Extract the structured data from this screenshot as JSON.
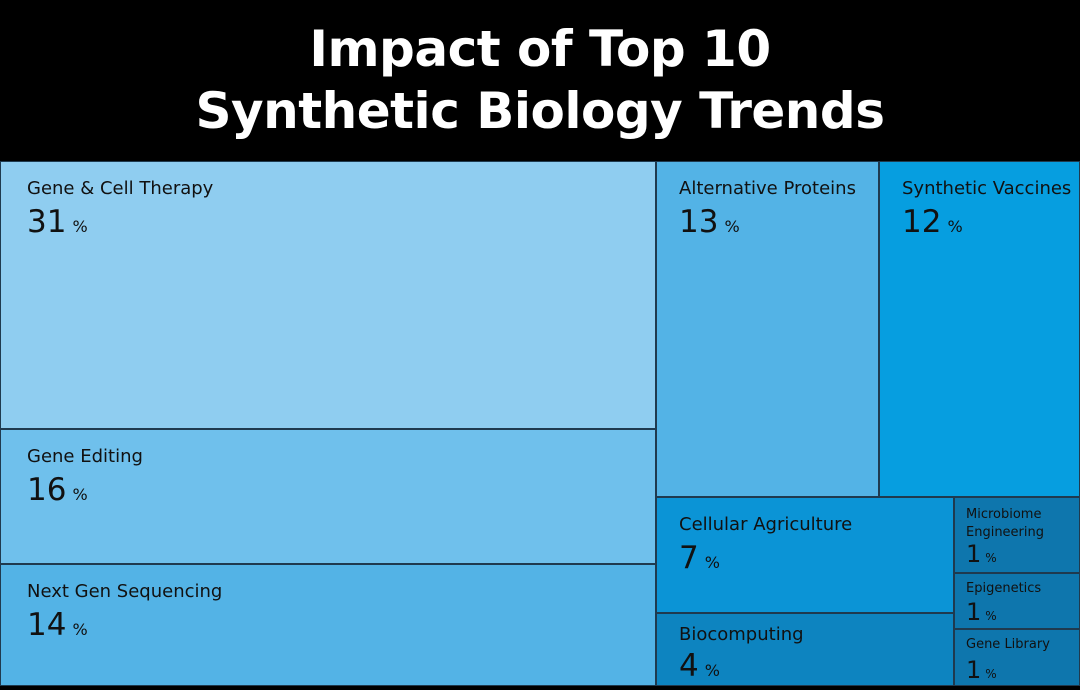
{
  "title_line1": "Impact of Top 10",
  "title_line2": "Synthetic Biology Trends",
  "chart_data": {
    "type": "treemap",
    "unit": "%",
    "items": [
      {
        "label": "Gene & Cell Therapy",
        "value": 31,
        "color": "#8fcdf0"
      },
      {
        "label": "Gene Editing",
        "value": 16,
        "color": "#6fc0ec"
      },
      {
        "label": "Next Gen Sequencing",
        "value": 14,
        "color": "#53b3e6"
      },
      {
        "label": "Alternative Proteins",
        "value": 13,
        "color": "#53b3e6"
      },
      {
        "label": "Synthetic Vaccines",
        "value": 12,
        "color": "#069ee0"
      },
      {
        "label": "Cellular Agriculture",
        "value": 7,
        "color": "#0b94d6"
      },
      {
        "label": "Biocomputing",
        "value": 4,
        "color": "#0d84c0"
      },
      {
        "label": "Microbiome Engineering",
        "value": 1,
        "color": "#0e76ad"
      },
      {
        "label": "Epigenetics",
        "value": 1,
        "color": "#0e76ad"
      },
      {
        "label": "Gene Library",
        "value": 1,
        "color": "#0e76ad"
      }
    ]
  }
}
